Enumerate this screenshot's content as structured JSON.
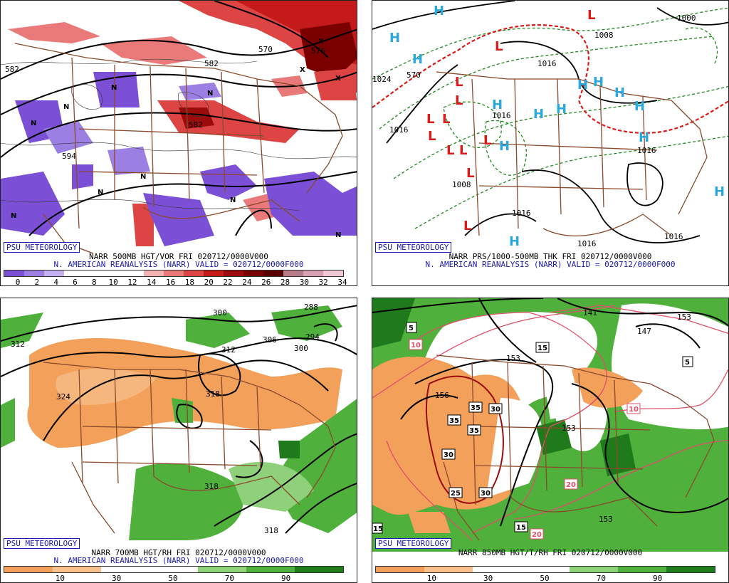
{
  "panels": [
    {
      "id": "p1",
      "brand": "PSU METEOROLOGY",
      "title": "NARR 500MB HGT/VOR FRI 020712/0000V000",
      "subtitle": "N. AMERICAN REANALYSIS (NARR) VALID = 020712/0000F000",
      "colorbar": {
        "colors": [
          "#7b4fd6",
          "#9b7fe3",
          "#c2b0f0",
          "#ffffff",
          "#ffffff",
          "#ffffff",
          "#ffffff",
          "#f3b3b3",
          "#ea7a7a",
          "#dd4444",
          "#c41a1a",
          "#9b0b0b",
          "#7a0000",
          "#5a0000",
          "#b77a8a",
          "#d6a0b0",
          "#f0c8d4"
        ],
        "ticks": [
          "0",
          "2",
          "4",
          "6",
          "8",
          "10",
          "12",
          "14",
          "16",
          "18",
          "20",
          "22",
          "24",
          "26",
          "28",
          "30",
          "32",
          "34"
        ]
      },
      "contour_labels": [
        "570",
        "582",
        "582",
        "582",
        "594",
        "576"
      ],
      "markers": [
        "N",
        "N",
        "N",
        "N",
        "N",
        "N",
        "N",
        "N",
        "N",
        "X",
        "X",
        "X"
      ]
    },
    {
      "id": "p2",
      "brand": "PSU METEOROLOGY",
      "title": "NARR PRS/1000-500MB THK FRI 020712/0000V000",
      "subtitle": "N. AMERICAN REANALYSIS (NARR) VALID = 020712/0000F000",
      "contour_labels": [
        "1000",
        "1008",
        "1016",
        "1024",
        "570",
        "1016",
        "1016",
        "1016",
        "1016",
        "1016",
        "1008",
        "1016"
      ],
      "highs": [
        "H",
        "H",
        "H",
        "H",
        "H",
        "H",
        "H",
        "H",
        "H",
        "H",
        "H",
        "H",
        "H",
        "H"
      ],
      "lows": [
        "L",
        "L",
        "L",
        "L",
        "L",
        "L",
        "L",
        "L",
        "L",
        "L",
        "L",
        "L"
      ]
    },
    {
      "id": "p3",
      "brand": "PSU METEOROLOGY",
      "title": "NARR 700MB HGT/RH FRI 020712/0000V000",
      "subtitle": "N. AMERICAN REANALYSIS (NARR) VALID = 020712/0000F000",
      "colorbar": {
        "colors": [
          "#f2a05a",
          "#f7c08c",
          "#ffffff",
          "#ffffff",
          "#8fd07a",
          "#4fb03c",
          "#1e7a1a"
        ],
        "ticks": [
          "10",
          "30",
          "50",
          "70",
          "90"
        ]
      },
      "contour_labels": [
        "312",
        "300",
        "312",
        "306",
        "300",
        "294",
        "324",
        "318",
        "318",
        "318",
        "288"
      ]
    },
    {
      "id": "p4",
      "brand": "PSU METEOROLOGY",
      "title": "NARR 850MB HGT/T/RH FRI 020712/0000V000",
      "colorbar": {
        "colors": [
          "#f2a05a",
          "#f7c08c",
          "#ffffff",
          "#ffffff",
          "#8fd07a",
          "#4fb03c",
          "#1e7a1a"
        ],
        "ticks": [
          "10",
          "30",
          "50",
          "70",
          "90"
        ]
      },
      "contour_labels": [
        "141",
        "147",
        "153",
        "153",
        "153",
        "156",
        "153"
      ],
      "temp_boxes": [
        "5",
        "10",
        "15",
        "35",
        "30",
        "35",
        "35",
        "30",
        "25",
        "30",
        "15",
        "20",
        "20",
        "10",
        "5",
        "15"
      ]
    }
  ]
}
